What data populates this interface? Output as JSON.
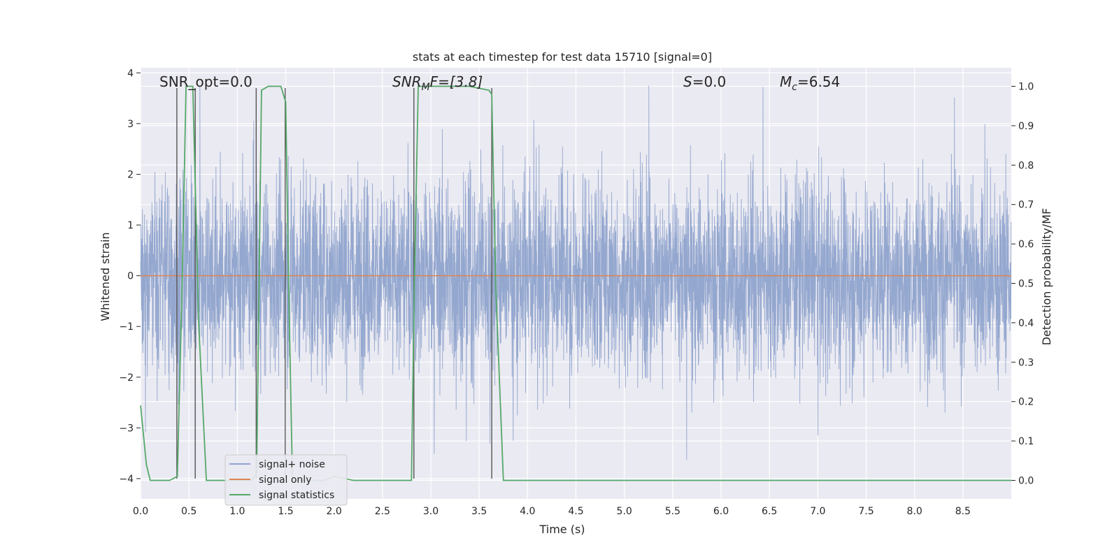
{
  "chart_data": {
    "type": "line",
    "title": "stats at each timestep for test data 15710 [signal=0]",
    "xlabel": "Time (s)",
    "ylabel": "Whitened strain",
    "ylabel_right": "Detection probability/MF",
    "xlim": [
      0,
      9.0
    ],
    "ylim": [
      -4.4,
      4.1
    ],
    "ylim_right": [
      -0.047,
      1.047
    ],
    "x_ticks": [
      0.0,
      0.5,
      1.0,
      1.5,
      2.0,
      2.5,
      3.0,
      3.5,
      4.0,
      4.5,
      5.0,
      5.5,
      6.0,
      6.5,
      7.0,
      7.5,
      8.0,
      8.5
    ],
    "x_tick_labels": [
      "0.0",
      "0.5",
      "1.0",
      "1.5",
      "2.0",
      "2.5",
      "3.0",
      "3.5",
      "4.0",
      "4.5",
      "5.0",
      "5.5",
      "6.0",
      "6.5",
      "7.0",
      "7.5",
      "8.0",
      "8.5"
    ],
    "y_ticks": [
      4,
      3,
      2,
      1,
      0,
      -1,
      -2,
      -3,
      -4
    ],
    "y_tick_labels": [
      "4",
      "3",
      "2",
      "1",
      "0",
      "−1",
      "−2",
      "−3",
      "−4"
    ],
    "y2_ticks": [
      1.0,
      0.9,
      0.8,
      0.7,
      0.6,
      0.5,
      0.4,
      0.3,
      0.2,
      0.1,
      0.0
    ],
    "y2_tick_labels": [
      "1.0",
      "0.9",
      "0.8",
      "0.7",
      "0.6",
      "0.5",
      "0.4",
      "0.3",
      "0.2",
      "0.1",
      "0.0"
    ],
    "grid": true,
    "legend_position": "lower-left",
    "colors": {
      "noise": "#8fa3cc",
      "signal": "#dd8452",
      "stats": "#55a868",
      "marker": "#555555",
      "plot_bg": "#eaeaf2",
      "grid": "#ffffff"
    },
    "annotations": {
      "snr_opt": "SNR_opt=0.0",
      "snr_mf_sym": "SNR",
      "snr_mf_sub": "M",
      "snr_mf_rest": "F=[3.8]",
      "s_sym": "S",
      "s_rest": "=0.0",
      "mc_sym": "M",
      "mc_sub": "c",
      "mc_rest": "=6.54"
    },
    "series": [
      {
        "name": "signal+ noise",
        "kind": "noise",
        "sample_rate_hz": 2048,
        "amplitude_envelope": [
          1.8,
          3.7
        ],
        "note_values": "Gaussian whitened noise, |values| mostly within ±2, spikes to about ±3.7"
      },
      {
        "name": "signal only",
        "kind": "flat",
        "value": 0
      },
      {
        "name": "signal statistics",
        "kind": "probability",
        "x": [
          0.0,
          0.06,
          0.1,
          0.3,
          0.38,
          0.43,
          0.47,
          0.54,
          0.6,
          0.68,
          1.15,
          1.2,
          1.25,
          1.32,
          1.45,
          1.5,
          1.53,
          1.57,
          1.75,
          1.9,
          2.0,
          2.2,
          2.5,
          2.8,
          2.83,
          2.87,
          3.0,
          3.2,
          3.4,
          3.6,
          3.63,
          3.67,
          3.75,
          3.8,
          5.0,
          7.0,
          9.0
        ],
        "y": [
          0.19,
          0.04,
          0.0,
          0.0,
          0.01,
          0.5,
          1.0,
          1.0,
          0.4,
          0.0,
          0.0,
          0.02,
          0.99,
          1.0,
          1.0,
          0.96,
          0.5,
          0.0,
          0.0,
          0.0,
          0.01,
          0.0,
          0.0,
          0.0,
          0.5,
          1.0,
          1.0,
          1.0,
          1.0,
          0.99,
          0.98,
          0.5,
          0.0,
          0.0,
          0.0,
          0.0,
          0.0
        ]
      }
    ],
    "marker_lines": [
      {
        "x": 0.375,
        "y_top": 3.7,
        "y_bottom": -4.0
      },
      {
        "x": 0.565,
        "y_top": 3.7,
        "y_bottom": -4.0
      },
      {
        "x": 1.195,
        "y_top": 3.7,
        "y_bottom": -4.0
      },
      {
        "x": 1.495,
        "y_top": 3.7,
        "y_bottom": -4.0
      },
      {
        "x": 2.825,
        "y_top": 3.7,
        "y_bottom": -4.0
      },
      {
        "x": 3.63,
        "y_top": 3.7,
        "y_bottom": -4.0
      }
    ]
  }
}
